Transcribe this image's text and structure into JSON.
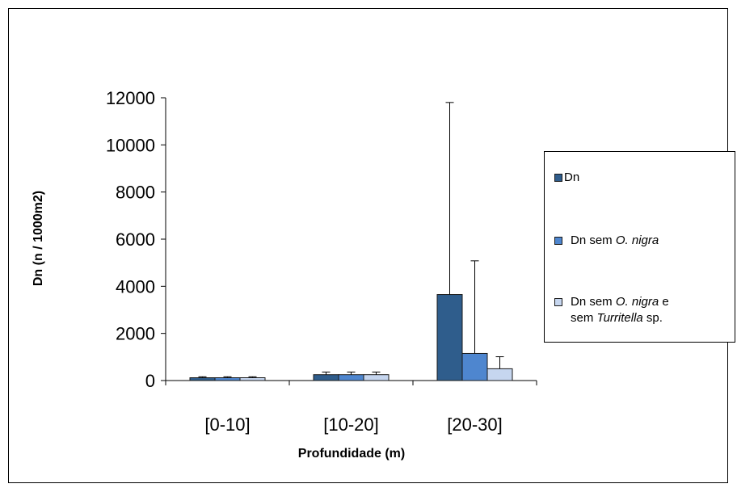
{
  "chart_data": {
    "type": "bar",
    "ylabel": "Dn (n / 1000m2)",
    "xlabel": "Profundidade (m)",
    "categories": [
      "[0-10]",
      "[10-20]",
      "[20-30]"
    ],
    "ylim": [
      0,
      12000
    ],
    "yticks": [
      0,
      2000,
      4000,
      6000,
      8000,
      10000,
      12000
    ],
    "grid": false,
    "legend_position": "right",
    "series": [
      {
        "name": "Dn",
        "color": "#2f5d8c",
        "values": [
          120,
          250,
          3650
        ],
        "errors": [
          40,
          110,
          8150
        ]
      },
      {
        "name": "Dn sem O. nigra",
        "color": "#4e86cf",
        "values": [
          120,
          250,
          1150
        ],
        "errors": [
          40,
          110,
          3930
        ]
      },
      {
        "name": "Dn sem O. nigra e sem Turritella sp.",
        "color": "#c6d6ef",
        "values": [
          120,
          250,
          500
        ],
        "errors": [
          40,
          110,
          510
        ]
      }
    ]
  },
  "legend": {
    "item1": {
      "text": "Dn"
    },
    "item2": {
      "prefix": "Dn sem ",
      "italic": "O. nigra"
    },
    "item3": {
      "prefix": "Dn sem ",
      "italic1": "O. nigra",
      "mid": " e",
      "line2_prefix": "sem ",
      "italic2": "Turritella",
      "suffix": " sp."
    }
  }
}
